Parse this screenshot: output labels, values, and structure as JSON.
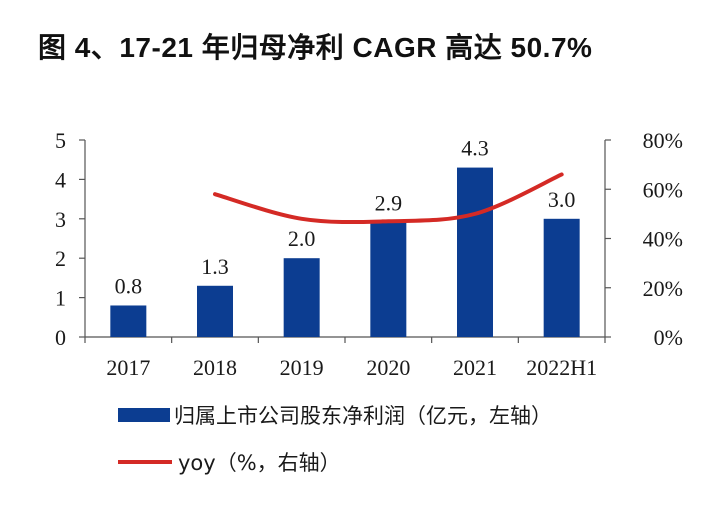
{
  "title": "图 4、17-21 年归母净利 CAGR 高达 50.7%",
  "colors": {
    "bar": "#0c3d91",
    "line": "#d42a25",
    "axis": "#555555"
  },
  "chart_data": {
    "type": "bar",
    "categories": [
      "2017",
      "2018",
      "2019",
      "2020",
      "2021",
      "2022H1"
    ],
    "series": [
      {
        "name": "归属上市公司股东净利润（亿元，左轴）",
        "type": "bar",
        "axis": "left",
        "values": [
          0.8,
          1.3,
          2.0,
          2.9,
          4.3,
          3.0
        ],
        "labels": [
          "0.8",
          "1.3",
          "2.0",
          "2.9",
          "4.3",
          "3.0"
        ]
      },
      {
        "name": "yoy（%，右轴）",
        "type": "line",
        "axis": "right",
        "values": [
          null,
          58,
          48,
          47,
          50,
          66
        ]
      }
    ],
    "left_axis": {
      "ylim": [
        0,
        5
      ],
      "ticks": [
        "0",
        "1",
        "2",
        "3",
        "4",
        "5"
      ]
    },
    "right_axis": {
      "ylim": [
        0,
        80
      ],
      "ticks": [
        "0%",
        "20%",
        "40%",
        "60%",
        "80%"
      ]
    },
    "legend_position": "bottom-left",
    "grid": false
  }
}
